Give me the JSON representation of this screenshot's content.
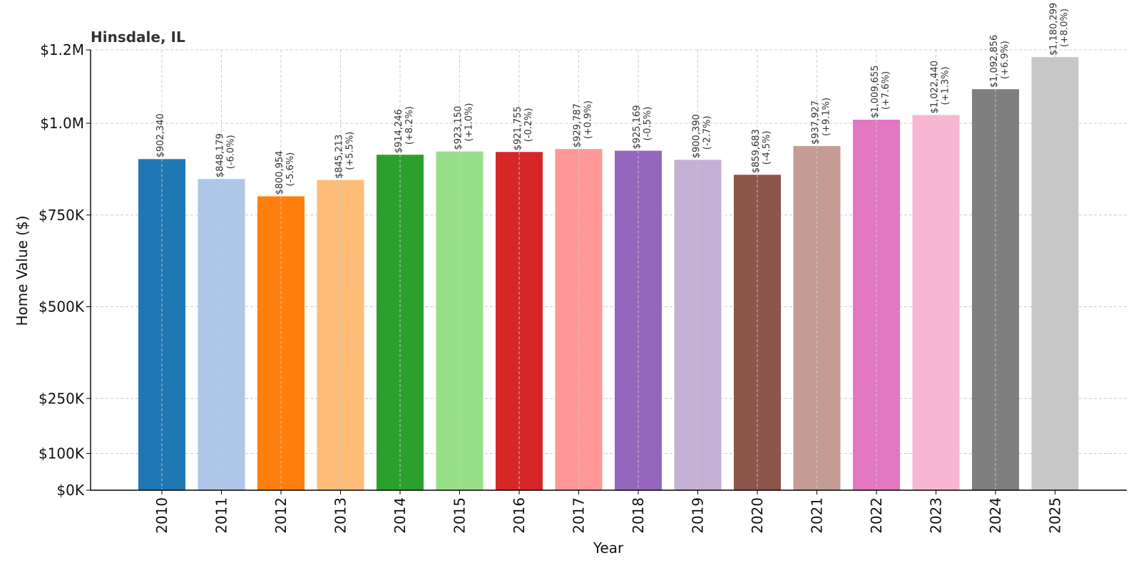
{
  "chart_data": {
    "type": "bar",
    "title": "Hinsdale, IL",
    "xlabel": "Year",
    "ylabel": "Home Value ($)",
    "ylim": [
      0,
      1200000
    ],
    "yticks": [
      0,
      100000,
      250000,
      500000,
      750000,
      1000000,
      1200000
    ],
    "ytick_labels": [
      "$0K",
      "$100K",
      "$250K",
      "$500K",
      "$750K",
      "$1.0M",
      "$1.2M"
    ],
    "grid": true,
    "categories": [
      "2010",
      "2011",
      "2012",
      "2013",
      "2014",
      "2015",
      "2016",
      "2017",
      "2018",
      "2019",
      "2020",
      "2021",
      "2022",
      "2023",
      "2024",
      "2025"
    ],
    "values": [
      902340,
      848179,
      800954,
      845213,
      914246,
      923150,
      921755,
      929787,
      925169,
      900390,
      859683,
      937927,
      1009655,
      1022440,
      1092856,
      1180299
    ],
    "value_labels": [
      "$902,340",
      "$848,179",
      "$800,954",
      "$845,213",
      "$914,246",
      "$923,150",
      "$921,755",
      "$929,787",
      "$925,169",
      "$900,390",
      "$859,683",
      "$937,927",
      "$1,009,655",
      "$1,022,440",
      "$1,092,856",
      "$1,180,299"
    ],
    "change_labels": [
      "",
      "(-6.0%)",
      "(-5.6%)",
      "(+5.5%)",
      "(+8.2%)",
      "(+1.0%)",
      "(-0.2%)",
      "(+0.9%)",
      "(-0.5%)",
      "(-2.7%)",
      "(-4.5%)",
      "(+9.1%)",
      "(+7.6%)",
      "(+1.3%)",
      "(+6.9%)",
      "(+8.0%)"
    ],
    "colors": [
      "#1f77b4",
      "#aec7e8",
      "#ff7f0e",
      "#ffbb78",
      "#2ca02c",
      "#98df8a",
      "#d62728",
      "#ff9896",
      "#9467bd",
      "#c5b0d5",
      "#8c564b",
      "#c49c94",
      "#e377c2",
      "#f7b6d2",
      "#7f7f7f",
      "#c7c7c7"
    ]
  }
}
